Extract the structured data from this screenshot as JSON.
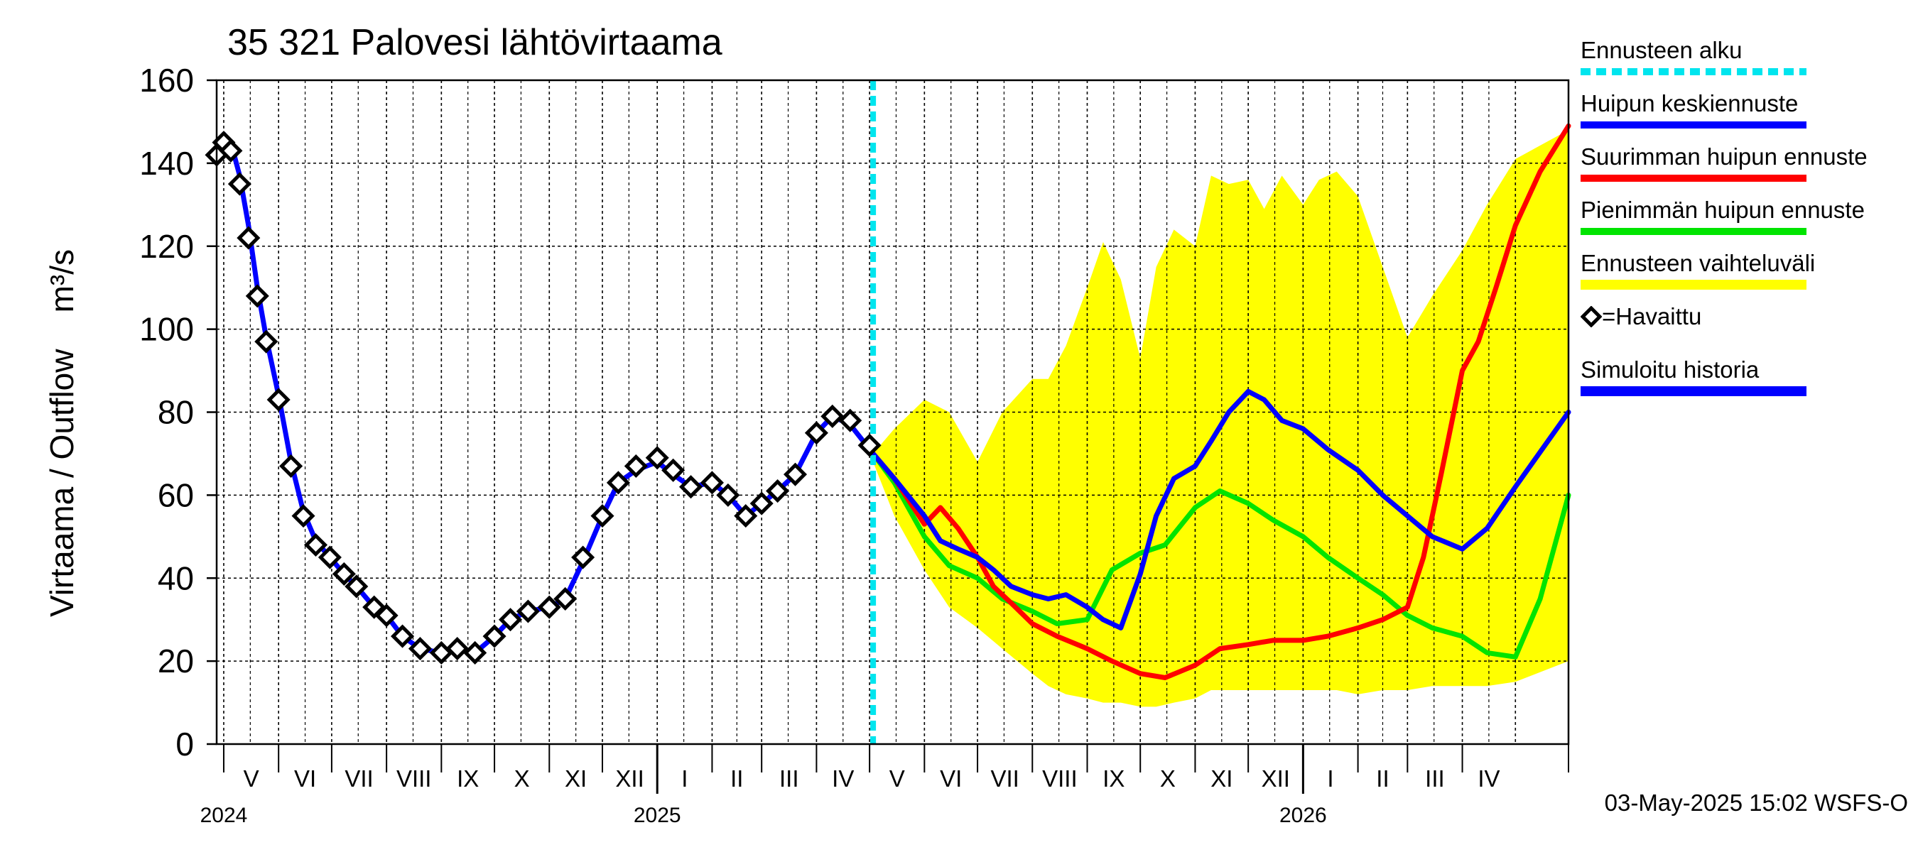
{
  "chart_data": {
    "type": "line",
    "title": "35 321 Palovesi lähtövirtaama",
    "ylabel_main": "Virtaama / Outflow",
    "ylabel_unit": "m³/s",
    "ylim": [
      0,
      160
    ],
    "y_ticks": [
      0,
      20,
      40,
      60,
      80,
      100,
      120,
      140,
      160
    ],
    "x_range": [
      "2024-04-27",
      "2026-05-31"
    ],
    "grid": true,
    "forecast_start": "2025-05-03",
    "month_labels": [
      {
        "label": "V",
        "start": "2024-05-01"
      },
      {
        "label": "VI",
        "start": "2024-06-01"
      },
      {
        "label": "VII",
        "start": "2024-07-01"
      },
      {
        "label": "VIII",
        "start": "2024-08-01"
      },
      {
        "label": "IX",
        "start": "2024-09-01"
      },
      {
        "label": "X",
        "start": "2024-10-01"
      },
      {
        "label": "XI",
        "start": "2024-11-01"
      },
      {
        "label": "XII",
        "start": "2024-12-01"
      },
      {
        "label": "I",
        "start": "2025-01-01"
      },
      {
        "label": "II",
        "start": "2025-02-01"
      },
      {
        "label": "III",
        "start": "2025-03-01"
      },
      {
        "label": "IV",
        "start": "2025-04-01"
      },
      {
        "label": "V",
        "start": "2025-05-01"
      },
      {
        "label": "VI",
        "start": "2025-06-01"
      },
      {
        "label": "VII",
        "start": "2025-07-01"
      },
      {
        "label": "VIII",
        "start": "2025-08-01"
      },
      {
        "label": "IX",
        "start": "2025-09-01"
      },
      {
        "label": "X",
        "start": "2025-10-01"
      },
      {
        "label": "XI",
        "start": "2025-11-01"
      },
      {
        "label": "XII",
        "start": "2025-12-01"
      },
      {
        "label": "I",
        "start": "2026-01-01"
      },
      {
        "label": "II",
        "start": "2026-02-01"
      },
      {
        "label": "III",
        "start": "2026-03-01"
      },
      {
        "label": "IV",
        "start": "2026-04-01"
      }
    ],
    "year_labels": [
      {
        "label": "2024",
        "at": "2024-05-01"
      },
      {
        "label": "2025",
        "at": "2025-01-01"
      },
      {
        "label": "2026",
        "at": "2026-01-01"
      }
    ],
    "series": [
      {
        "name": "Ennusteen vaihteluväli",
        "kind": "band",
        "color": "#ffff00",
        "x": [
          "2025-05-03",
          "2025-05-15",
          "2025-06-01",
          "2025-06-15",
          "2025-07-01",
          "2025-07-15",
          "2025-08-01",
          "2025-08-10",
          "2025-08-20",
          "2025-09-01",
          "2025-09-10",
          "2025-09-20",
          "2025-10-01",
          "2025-10-10",
          "2025-10-20",
          "2025-11-01",
          "2025-11-10",
          "2025-11-20",
          "2025-12-01",
          "2025-12-10",
          "2025-12-20",
          "2026-01-01",
          "2026-01-10",
          "2026-01-20",
          "2026-02-01",
          "2026-02-15",
          "2026-03-01",
          "2026-03-15",
          "2026-04-01",
          "2026-04-15",
          "2026-05-01",
          "2026-05-31"
        ],
        "upper": [
          70,
          76,
          83,
          80,
          68,
          80,
          88,
          88,
          96,
          110,
          121,
          112,
          93,
          115,
          124,
          120,
          137,
          135,
          136,
          129,
          137,
          130,
          136,
          138,
          132,
          115,
          98,
          108,
          119,
          130,
          141,
          148
        ],
        "lower": [
          68,
          55,
          42,
          33,
          28,
          23,
          17,
          14,
          12,
          11,
          10,
          10,
          9,
          9,
          10,
          11,
          13,
          13,
          13,
          13,
          13,
          13,
          13,
          13,
          12,
          13,
          13,
          14,
          14,
          14,
          15,
          20
        ]
      },
      {
        "name": "Huipun keskiennuste",
        "color": "#0000ff",
        "x": [
          "2025-05-03",
          "2025-05-15",
          "2025-06-01",
          "2025-06-10",
          "2025-06-20",
          "2025-07-01",
          "2025-07-10",
          "2025-07-20",
          "2025-08-01",
          "2025-08-10",
          "2025-08-20",
          "2025-09-01",
          "2025-09-10",
          "2025-09-20",
          "2025-10-01",
          "2025-10-10",
          "2025-10-20",
          "2025-11-01",
          "2025-11-10",
          "2025-11-20",
          "2025-12-01",
          "2025-12-10",
          "2025-12-20",
          "2026-01-01",
          "2026-01-15",
          "2026-02-01",
          "2026-02-15",
          "2026-03-01",
          "2026-03-15",
          "2026-04-01",
          "2026-04-15",
          "2026-05-01",
          "2026-05-31"
        ],
        "values": [
          70,
          64,
          55,
          49,
          47,
          45,
          42,
          38,
          36,
          35,
          36,
          33,
          30,
          28,
          41,
          55,
          64,
          67,
          73,
          80,
          85,
          83,
          78,
          76,
          71,
          66,
          60,
          55,
          50,
          47,
          52,
          62,
          80
        ]
      },
      {
        "name": "Suurimman huipun ennuste",
        "color": "#ff0000",
        "x": [
          "2025-05-03",
          "2025-05-15",
          "2025-06-01",
          "2025-06-10",
          "2025-06-20",
          "2025-07-01",
          "2025-07-10",
          "2025-07-20",
          "2025-08-01",
          "2025-08-15",
          "2025-09-01",
          "2025-09-15",
          "2025-10-01",
          "2025-10-15",
          "2025-11-01",
          "2025-11-15",
          "2025-12-01",
          "2025-12-15",
          "2026-01-01",
          "2026-01-15",
          "2026-02-01",
          "2026-02-15",
          "2026-03-01",
          "2026-03-10",
          "2026-03-20",
          "2026-04-01",
          "2026-04-10",
          "2026-04-20",
          "2026-05-01",
          "2026-05-15",
          "2026-05-31"
        ],
        "values": [
          70,
          64,
          53,
          57,
          52,
          45,
          38,
          34,
          29,
          26,
          23,
          20,
          17,
          16,
          19,
          23,
          24,
          25,
          25,
          26,
          28,
          30,
          33,
          45,
          65,
          90,
          97,
          110,
          125,
          138,
          149
        ]
      },
      {
        "name": "Pienimmän huipun ennuste",
        "color": "#00e400",
        "x": [
          "2025-05-03",
          "2025-05-15",
          "2025-06-01",
          "2025-06-15",
          "2025-07-01",
          "2025-07-15",
          "2025-08-01",
          "2025-08-15",
          "2025-09-01",
          "2025-09-15",
          "2025-10-01",
          "2025-10-15",
          "2025-11-01",
          "2025-11-15",
          "2025-12-01",
          "2025-12-15",
          "2026-01-01",
          "2026-01-15",
          "2026-02-01",
          "2026-02-15",
          "2026-03-01",
          "2026-03-15",
          "2026-04-01",
          "2026-04-15",
          "2026-05-01",
          "2026-05-15",
          "2026-05-31"
        ],
        "values": [
          70,
          63,
          50,
          43,
          40,
          35,
          32,
          29,
          30,
          42,
          46,
          48,
          57,
          61,
          58,
          54,
          50,
          45,
          40,
          36,
          31,
          28,
          26,
          22,
          21,
          35,
          60
        ]
      },
      {
        "name": "Ennusteen alku",
        "kind": "vline",
        "color": "#00e5ee"
      },
      {
        "name": "=Havaittu",
        "kind": "markers",
        "color": "#000000",
        "x": [
          "2024-04-27",
          "2024-05-01",
          "2024-05-05",
          "2024-05-10",
          "2024-05-15",
          "2024-05-20",
          "2024-05-25",
          "2024-06-01",
          "2024-06-08",
          "2024-06-15",
          "2024-06-22",
          "2024-06-30",
          "2024-07-08",
          "2024-07-15",
          "2024-07-25",
          "2024-08-01",
          "2024-08-10",
          "2024-08-20",
          "2024-09-01",
          "2024-09-10",
          "2024-09-20",
          "2024-10-01",
          "2024-10-10",
          "2024-10-20",
          "2024-11-01",
          "2024-11-10",
          "2024-11-20",
          "2024-12-01",
          "2024-12-10",
          "2024-12-20",
          "2025-01-01",
          "2025-01-10",
          "2025-01-20",
          "2025-02-01",
          "2025-02-10",
          "2025-02-20",
          "2025-03-01",
          "2025-03-10",
          "2025-03-20",
          "2025-04-01",
          "2025-04-10",
          "2025-04-20",
          "2025-05-01"
        ],
        "values": [
          142,
          145,
          143,
          135,
          122,
          108,
          97,
          83,
          67,
          55,
          48,
          45,
          41,
          38,
          33,
          31,
          26,
          23,
          22,
          23,
          22,
          26,
          30,
          32,
          33,
          35,
          45,
          55,
          63,
          67,
          69,
          66,
          62,
          63,
          60,
          55,
          58,
          61,
          65,
          75,
          79,
          78,
          72
        ]
      },
      {
        "name": "Simuloitu historia",
        "color": "#0000ff",
        "x": [
          "2024-04-27",
          "2024-05-01",
          "2024-05-05",
          "2024-05-10",
          "2024-05-15",
          "2024-05-20",
          "2024-05-25",
          "2024-06-01",
          "2024-06-08",
          "2024-06-15",
          "2024-06-22",
          "2024-06-30",
          "2024-07-08",
          "2024-07-15",
          "2024-07-25",
          "2024-08-01",
          "2024-08-10",
          "2024-08-20",
          "2024-09-01",
          "2024-09-10",
          "2024-09-20",
          "2024-10-01",
          "2024-10-10",
          "2024-10-20",
          "2024-11-01",
          "2024-11-10",
          "2024-11-20",
          "2024-12-01",
          "2024-12-10",
          "2024-12-20",
          "2025-01-01",
          "2025-01-10",
          "2025-01-20",
          "2025-02-01",
          "2025-02-10",
          "2025-02-20",
          "2025-03-01",
          "2025-03-10",
          "2025-03-20",
          "2025-04-01",
          "2025-04-10",
          "2025-04-20",
          "2025-05-03"
        ],
        "values": [
          143,
          147,
          145,
          137,
          125,
          110,
          98,
          84,
          68,
          56,
          49,
          45,
          41,
          38,
          33,
          31,
          26,
          23,
          22,
          23,
          22,
          26,
          30,
          32,
          33,
          35,
          44,
          55,
          63,
          66,
          68,
          65,
          62,
          63,
          60,
          55,
          58,
          61,
          65,
          75,
          79,
          77,
          70
        ]
      }
    ]
  },
  "legend": {
    "items": [
      {
        "label": "Ennusteen alku",
        "color": "#00e5ee",
        "style": "dashed"
      },
      {
        "label": "Huipun keskiennuste",
        "color": "#0000ff",
        "style": "solid"
      },
      {
        "label": "Suurimman huipun ennuste",
        "color": "#ff0000",
        "style": "solid"
      },
      {
        "label": "Pienimmän huipun ennuste",
        "color": "#00e400",
        "style": "solid"
      },
      {
        "label": "Ennusteen vaihteluväli",
        "color": "#ffff00",
        "style": "band"
      },
      {
        "label": "=Havaittu",
        "color": "#000000",
        "style": "marker"
      },
      {
        "label": "Simuloitu historia",
        "color": "#0000ff",
        "style": "solid"
      }
    ]
  },
  "footer": "03-May-2025 15:02 WSFS-O"
}
